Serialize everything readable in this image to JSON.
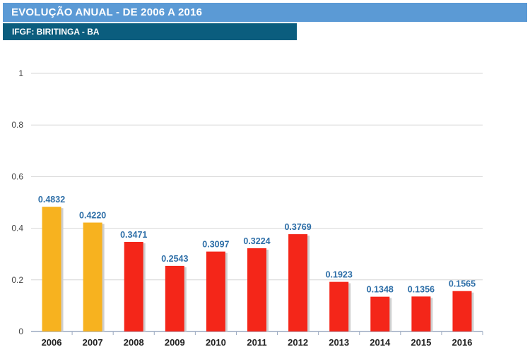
{
  "header": {
    "title": "EVOLUÇÃO ANUAL - DE 2006 A 2016",
    "subtitle": "IFGF: BIRITINGA - BA"
  },
  "colors": {
    "title_bg": "#5b9ad5",
    "subtitle_bg": "#0b5d7e",
    "bar_yellow": "#f7b21f",
    "bar_red": "#f42619",
    "data_label": "#2e6fa8"
  },
  "chart_data": {
    "type": "bar",
    "title": "",
    "xlabel": "",
    "ylabel": "",
    "ylim": [
      0,
      1
    ],
    "yticks": [
      "0",
      "0.2",
      "0.4",
      "0.6",
      "0.8",
      "1"
    ],
    "grid": true,
    "categories": [
      "2006",
      "2007",
      "2008",
      "2009",
      "2010",
      "2011",
      "2012",
      "2013",
      "2014",
      "2015",
      "2016"
    ],
    "values": [
      0.4832,
      0.422,
      0.3471,
      0.2543,
      0.3097,
      0.3224,
      0.3769,
      0.1923,
      0.1348,
      0.1356,
      0.1565
    ],
    "data_labels": [
      "0.4832",
      "0.4220",
      "0.3471",
      "0.2543",
      "0.3097",
      "0.3224",
      "0.3769",
      "0.1923",
      "0.1348",
      "0.1356",
      "0.1565"
    ],
    "bar_colors": [
      "#f7b21f",
      "#f7b21f",
      "#f42619",
      "#f42619",
      "#f42619",
      "#f42619",
      "#f42619",
      "#f42619",
      "#f42619",
      "#f42619",
      "#f42619"
    ]
  }
}
